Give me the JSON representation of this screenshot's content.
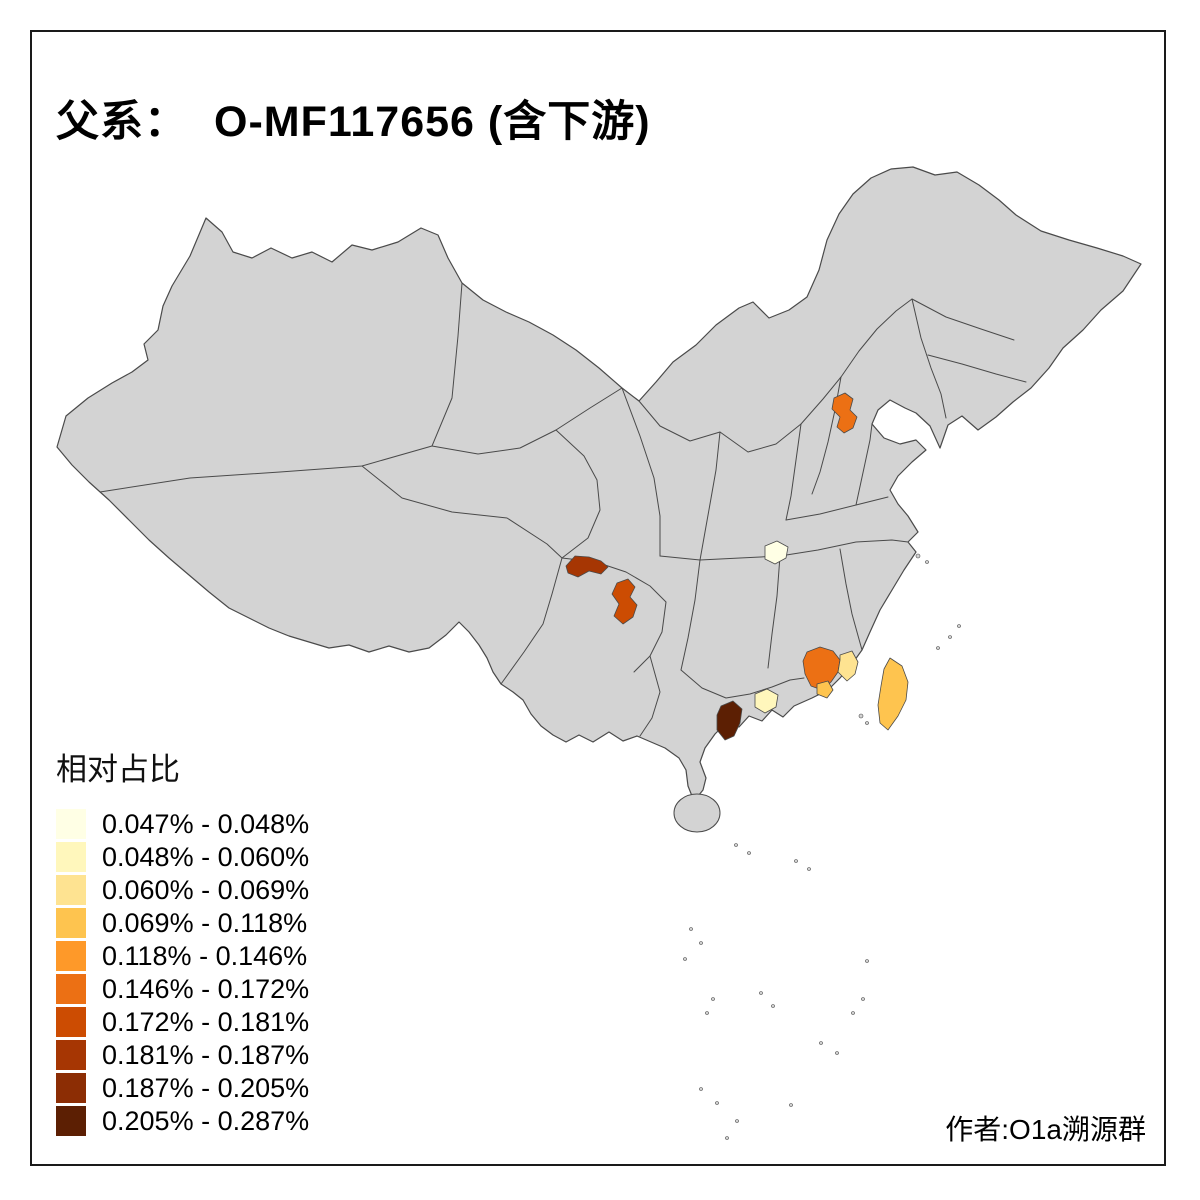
{
  "title": {
    "prefix": "父系：",
    "main": "O-MF117656 (含下游)"
  },
  "legend": {
    "title": "相对占比",
    "items": [
      {
        "label": "0.047% - 0.048%",
        "color": "#FFFFE5"
      },
      {
        "label": "0.048% - 0.060%",
        "color": "#FFF7BC"
      },
      {
        "label": "0.060% - 0.069%",
        "color": "#FEE391"
      },
      {
        "label": "0.069% - 0.118%",
        "color": "#FEC44F"
      },
      {
        "label": "0.118% - 0.146%",
        "color": "#FE9929"
      },
      {
        "label": "0.146% - 0.172%",
        "color": "#EC7014"
      },
      {
        "label": "0.172% - 0.181%",
        "color": "#CC4C02"
      },
      {
        "label": "0.181% - 0.187%",
        "color": "#A63603"
      },
      {
        "label": "0.187% - 0.205%",
        "color": "#8C2D04"
      },
      {
        "label": "0.205% - 0.287%",
        "color": "#5C1F03"
      }
    ]
  },
  "footer": {
    "author": "作者:O1a溯源群"
  },
  "map": {
    "land_color": "#D3D3D3",
    "border_color": "#4A4A4A",
    "sea_color": "#FFFFFF",
    "frame_color": "#1A1A1A",
    "regions": [
      {
        "id": "shandong-jinan",
        "color": "#EC7014"
      },
      {
        "id": "sichuan-west",
        "color": "#A63603"
      },
      {
        "id": "chongqing",
        "color": "#CC4C02"
      },
      {
        "id": "hunan-changsha",
        "color": "#FFFFE5"
      },
      {
        "id": "guangdong-meizhou",
        "color": "#EC7014"
      },
      {
        "id": "fujian-zhangzhou",
        "color": "#FEE391"
      },
      {
        "id": "guangdong-chaoshan",
        "color": "#FEC44F"
      },
      {
        "id": "guangdong-yunfu",
        "color": "#FFF7BC"
      },
      {
        "id": "guangdong-maoming",
        "color": "#5C1F03"
      },
      {
        "id": "taiwan",
        "color": "#FEC44F"
      }
    ]
  }
}
